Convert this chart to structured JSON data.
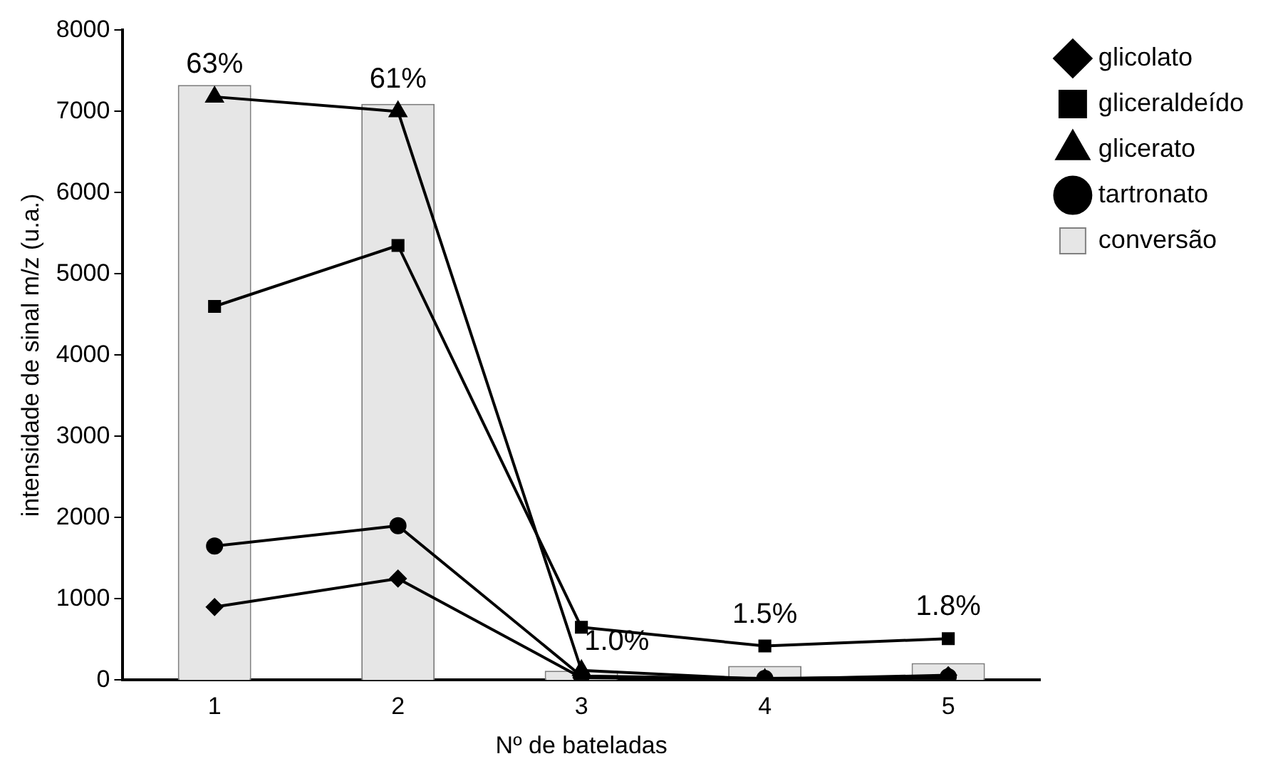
{
  "chart_data": {
    "type": "line",
    "xlabel": "Nº de bateladas",
    "ylabel": "intensidade de sinal m/z (u.a.)",
    "categories": [
      "1",
      "2",
      "3",
      "4",
      "5"
    ],
    "ylim": [
      0,
      8000
    ],
    "yticks": [
      0,
      1000,
      2000,
      3000,
      4000,
      5000,
      6000,
      7000,
      8000
    ],
    "y2lim": [
      0,
      68.8
    ],
    "grid": false,
    "legend": "top right",
    "series": [
      {
        "name": "glicolato",
        "color": "#000000",
        "marker": "diamond",
        "values": [
          900,
          1250,
          30,
          10,
          60
        ]
      },
      {
        "name": "gliceraldeído",
        "color": "#000000",
        "marker": "square",
        "values": [
          4600,
          5350,
          650,
          420,
          510
        ]
      },
      {
        "name": "glicerato",
        "color": "#000000",
        "marker": "triangle",
        "values": [
          7180,
          7000,
          120,
          10,
          10
        ]
      },
      {
        "name": "tartronato",
        "color": "#000000",
        "marker": "circle",
        "values": [
          1650,
          1900,
          50,
          20,
          40
        ]
      },
      {
        "name": "conversão",
        "type": "bar",
        "axis": "y2",
        "color": "#e6e6e6",
        "values": [
          63,
          61,
          1.0,
          1.5,
          1.8
        ],
        "value_labels": [
          "63%",
          "61%",
          "1.0%",
          "1.5%",
          "1.8%"
        ]
      }
    ]
  }
}
